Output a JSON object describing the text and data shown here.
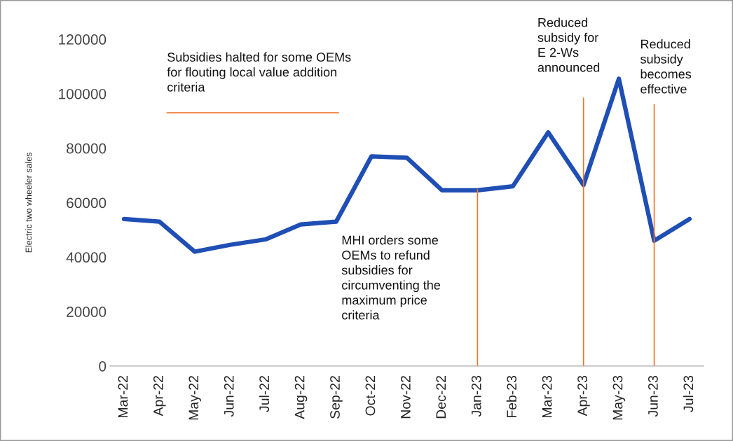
{
  "chart_data": {
    "type": "line",
    "ylabel": "Electric two wheeler sales",
    "categories": [
      "Mar-22",
      "Apr-22",
      "May-22",
      "Jun-22",
      "Jul-22",
      "Aug-22",
      "Sep-22",
      "Oct-22",
      "Nov-22",
      "Dec-22",
      "Jan-23",
      "Feb-23",
      "Mar-23",
      "Apr-23",
      "May-23",
      "Jun-23",
      "Jul-23"
    ],
    "series": [
      {
        "color": "#1f4eb4",
        "values": [
          54000,
          53000,
          42000,
          44500,
          46500,
          52000,
          53000,
          77000,
          76500,
          64500,
          64500,
          66000,
          85800,
          66500,
          105500,
          46000,
          54000
        ]
      }
    ],
    "ylim": [
      0,
      120000
    ],
    "yticks": [
      0,
      20000,
      40000,
      60000,
      80000,
      100000,
      120000
    ],
    "grid": false,
    "legend": false,
    "marker": "none",
    "line_style": "solid",
    "annotations": [
      "Subsidies halted for some OEMs\nfor flouting local value addition\ncriteria",
      "MHI orders some\nOEMs to refund\nsubsidies for\ncircumventing the\nmaximum price\ncriteria",
      "Reduced\nsubsidy for\nE 2-Ws\nannounced",
      "Reduced\nsubsidy\nbecomes\neffective"
    ],
    "ref_lines": [
      {
        "axis": "y",
        "value": 93000,
        "color": "#f4732a"
      },
      {
        "axis": "x",
        "value": "Jan-23",
        "color": "#f4732a"
      },
      {
        "axis": "x",
        "value": "Apr-23",
        "color": "#f4732a"
      },
      {
        "axis": "x",
        "value": "Jun-23",
        "color": "#f4732a"
      }
    ]
  }
}
